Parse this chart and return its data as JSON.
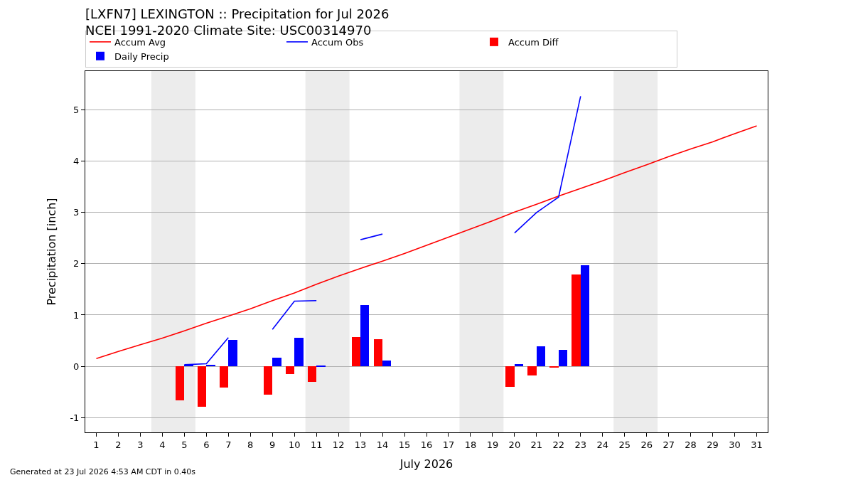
{
  "chart_data": {
    "type": "bar",
    "title": "[LXFN7] LEXINGTON :: Precipitation for Jul 2026",
    "subtitle": "NCEI 1991-2020 Climate Site: USC00314970",
    "xlabel": "July 2026",
    "ylabel": "Precipitation [inch]",
    "x": [
      1,
      2,
      3,
      4,
      5,
      6,
      7,
      8,
      9,
      10,
      11,
      12,
      13,
      14,
      15,
      16,
      17,
      18,
      19,
      20,
      21,
      22,
      23,
      24,
      25,
      26,
      27,
      28,
      29,
      30,
      31
    ],
    "series": [
      {
        "name": "Accum Avg",
        "type": "line",
        "color": "#ff0000",
        "values": [
          0.15,
          0.29,
          0.42,
          0.55,
          0.69,
          0.84,
          0.98,
          1.12,
          1.28,
          1.43,
          1.6,
          1.76,
          1.91,
          2.05,
          2.2,
          2.36,
          2.52,
          2.68,
          2.84,
          3.01,
          3.16,
          3.32,
          3.47,
          3.62,
          3.78,
          3.93,
          4.09,
          4.24,
          4.38,
          4.54,
          4.69
        ]
      },
      {
        "name": "Accum Obs",
        "type": "line",
        "color": "#0000ff",
        "values": [
          null,
          null,
          null,
          null,
          0.03,
          0.05,
          0.56,
          null,
          0.72,
          1.27,
          1.28,
          null,
          2.47,
          2.58,
          null,
          null,
          null,
          null,
          null,
          2.6,
          3.0,
          3.3,
          5.27,
          null,
          null,
          null,
          null,
          null,
          null,
          null,
          null
        ]
      },
      {
        "name": "Accum Diff",
        "color": "#ff0000",
        "values": [
          null,
          null,
          null,
          null,
          -0.67,
          -0.79,
          -0.41,
          null,
          -0.55,
          -0.15,
          -0.3,
          null,
          0.57,
          0.53,
          null,
          null,
          null,
          null,
          null,
          -0.4,
          -0.18,
          -0.02,
          1.79,
          null,
          null,
          null,
          null,
          null,
          null,
          null,
          null
        ]
      },
      {
        "name": "Daily Precip",
        "color": "#0000ff",
        "values": [
          null,
          null,
          null,
          null,
          0.03,
          0.03,
          0.52,
          null,
          0.17,
          0.56,
          0.01,
          null,
          1.2,
          0.11,
          null,
          null,
          null,
          null,
          null,
          0.04,
          0.39,
          0.32,
          1.97,
          null,
          null,
          null,
          null,
          null,
          null,
          null,
          null
        ]
      }
    ],
    "xlim": [
      0.5,
      31.5
    ],
    "xticks": [
      1,
      2,
      3,
      4,
      5,
      6,
      7,
      8,
      9,
      10,
      11,
      12,
      13,
      14,
      15,
      16,
      17,
      18,
      19,
      20,
      21,
      22,
      23,
      24,
      25,
      26,
      27,
      28,
      29,
      30,
      31
    ],
    "ylim": [
      -1.29,
      5.76
    ],
    "yticks": [
      -1,
      0,
      1,
      2,
      3,
      4,
      5
    ],
    "bands": [
      {
        "axis": "x",
        "from": 3.5,
        "to": 5.5,
        "color": "#ececec"
      },
      {
        "axis": "x",
        "from": 10.5,
        "to": 12.5,
        "color": "#ececec"
      },
      {
        "axis": "x",
        "from": 17.5,
        "to": 19.5,
        "color": "#ececec"
      },
      {
        "axis": "x",
        "from": 24.5,
        "to": 26.5,
        "color": "#ececec"
      }
    ],
    "annotations": [
      "Generated at 23 Jul 2026 4:53 AM CDT in 0.40s"
    ],
    "grid": "y",
    "legend": "top"
  }
}
